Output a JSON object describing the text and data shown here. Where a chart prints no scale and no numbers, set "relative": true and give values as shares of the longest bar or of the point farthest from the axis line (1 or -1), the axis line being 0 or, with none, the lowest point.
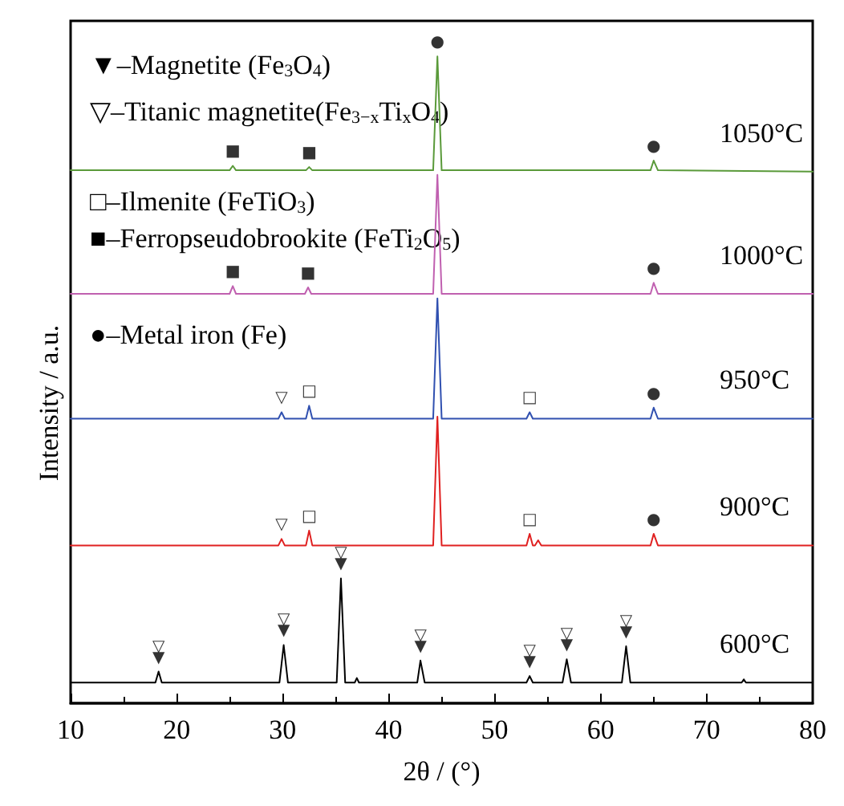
{
  "chart_data": {
    "type": "line",
    "relative": true,
    "xlabel": "2θ / (°)",
    "ylabel": "Intensity / a.u.",
    "xlim": [
      10,
      80
    ],
    "xticks": [
      10,
      20,
      30,
      40,
      50,
      60,
      70,
      80
    ],
    "grid": false,
    "legend": false,
    "marker": "none",
    "line_style": "solid",
    "series": [
      {
        "name": "1050°C",
        "color": "#5a9a3a",
        "x": [
          10,
          25,
          25.3,
          25.6,
          32.2,
          32.5,
          32.8,
          44.2,
          44.6,
          45.0,
          64.7,
          65.0,
          65.4,
          80
        ],
        "values": [
          0.824,
          0.824,
          0.831,
          0.824,
          0.824,
          0.829,
          0.824,
          0.824,
          1.0,
          0.824,
          0.824,
          0.839,
          0.824,
          0.822
        ]
      },
      {
        "name": "1000°C",
        "color": "#c060b0",
        "x": [
          10,
          25,
          25.3,
          25.6,
          32.1,
          32.4,
          32.7,
          44.2,
          44.6,
          45.0,
          64.7,
          65.0,
          65.4,
          80
        ],
        "values": [
          0.633,
          0.633,
          0.645,
          0.633,
          0.633,
          0.643,
          0.633,
          0.633,
          0.817,
          0.633,
          0.633,
          0.65,
          0.633,
          0.633
        ]
      },
      {
        "name": "950°C",
        "color": "#3050b0",
        "x": [
          10,
          29.6,
          29.9,
          30.2,
          32.2,
          32.5,
          32.8,
          44.2,
          44.6,
          45.0,
          53.0,
          53.3,
          53.6,
          64.7,
          65.0,
          65.4,
          80
        ],
        "values": [
          0.44,
          0.44,
          0.45,
          0.44,
          0.44,
          0.46,
          0.44,
          0.44,
          0.626,
          0.44,
          0.44,
          0.45,
          0.44,
          0.44,
          0.457,
          0.44,
          0.44
        ]
      },
      {
        "name": "900°C",
        "color": "#e02020",
        "x": [
          10,
          29.6,
          29.9,
          30.2,
          32.2,
          32.5,
          32.8,
          44.2,
          44.6,
          45.0,
          53.0,
          53.3,
          53.6,
          53.8,
          54.1,
          54.4,
          64.7,
          65.0,
          65.4,
          80
        ],
        "values": [
          0.244,
          0.244,
          0.254,
          0.244,
          0.244,
          0.267,
          0.244,
          0.244,
          0.443,
          0.244,
          0.244,
          0.262,
          0.244,
          0.244,
          0.252,
          0.244,
          0.244,
          0.262,
          0.244,
          0.244
        ]
      },
      {
        "name": "600°C",
        "color": "#000000",
        "x": [
          10,
          18.0,
          18.3,
          18.6,
          29.7,
          30.1,
          30.5,
          35.1,
          35.5,
          35.9,
          36.8,
          37.0,
          37.2,
          42.7,
          43.0,
          43.4,
          53.0,
          53.3,
          53.6,
          56.4,
          56.8,
          57.2,
          62.0,
          62.4,
          62.8,
          73.3,
          73.5,
          73.7,
          80
        ],
        "values": [
          0.032,
          0.032,
          0.049,
          0.032,
          0.032,
          0.09,
          0.032,
          0.032,
          0.193,
          0.032,
          0.032,
          0.039,
          0.032,
          0.032,
          0.066,
          0.032,
          0.032,
          0.042,
          0.032,
          0.032,
          0.068,
          0.032,
          0.032,
          0.088,
          0.032,
          0.032,
          0.037,
          0.032,
          0.032
        ]
      }
    ],
    "annotations": [
      "▼–Magnetite (Fe$_{3}$O$_{4}$)",
      "▽–Titanic magnetite(Fe$_{3−x}$Ti$_{x}$O$_{4}$)",
      "□–Ilmenite (FeTiO$_{3}$)",
      "■–Ferropseudobrookite (FeTi$_{2}$O$_{5}$)",
      "●–Metal iron (Fe)",
      {
        "text": "■",
        "x": 25.3,
        "y": 0.831
      },
      {
        "text": "■",
        "x": 32.5,
        "y": 0.829
      },
      {
        "text": "●",
        "x": 44.6,
        "y": 1.0
      },
      {
        "text": "●",
        "x": 65.0,
        "y": 0.839
      },
      {
        "text": "■",
        "x": 25.3,
        "y": 0.645
      },
      {
        "text": "■",
        "x": 32.4,
        "y": 0.643
      },
      {
        "text": "●",
        "x": 65.0,
        "y": 0.65
      },
      {
        "text": "▽",
        "x": 29.9,
        "y": 0.45
      },
      {
        "text": "□",
        "x": 32.5,
        "y": 0.46
      },
      {
        "text": "□",
        "x": 53.3,
        "y": 0.45
      },
      {
        "text": "●",
        "x": 65.0,
        "y": 0.457
      },
      {
        "text": "▽",
        "x": 29.9,
        "y": 0.254
      },
      {
        "text": "□",
        "x": 32.5,
        "y": 0.267
      },
      {
        "text": "□",
        "x": 53.3,
        "y": 0.262
      },
      {
        "text": "●",
        "x": 65.0,
        "y": 0.262
      },
      {
        "text": "▼",
        "x": 18.3,
        "y": 0.049
      },
      {
        "text": "▽",
        "x": 18.3,
        "y": 0.049
      },
      {
        "text": "▼",
        "x": 30.1,
        "y": 0.09
      },
      {
        "text": "▽",
        "x": 30.1,
        "y": 0.09
      },
      {
        "text": "▼",
        "x": 35.5,
        "y": 0.193
      },
      {
        "text": "▽",
        "x": 35.5,
        "y": 0.193
      },
      {
        "text": "▼",
        "x": 43.0,
        "y": 0.066
      },
      {
        "text": "▽",
        "x": 43.0,
        "y": 0.066
      },
      {
        "text": "▼",
        "x": 53.3,
        "y": 0.042
      },
      {
        "text": "▽",
        "x": 53.3,
        "y": 0.042
      },
      {
        "text": "▼",
        "x": 56.8,
        "y": 0.068
      },
      {
        "text": "▽",
        "x": 56.8,
        "y": 0.068
      },
      {
        "text": "▼",
        "x": 62.4,
        "y": 0.088
      },
      {
        "text": "▽",
        "x": 62.4,
        "y": 0.088
      }
    ]
  }
}
